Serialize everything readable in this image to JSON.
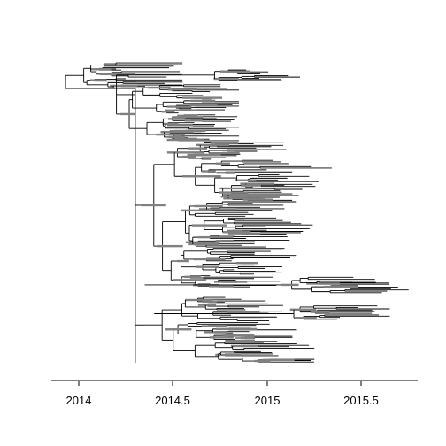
{
  "figure": {
    "type": "time-scaled phylogenetic tree",
    "leaves": "unlabeled",
    "line_color": "#000000",
    "uncertainty_bar_color": "#808080",
    "background": "#ffffff"
  },
  "chart_data": {
    "type": "tree",
    "xlabel": "",
    "ylabel": "",
    "xlim": [
      2013.85,
      2015.8
    ],
    "ticks": [
      {
        "value": 2014,
        "label": "2014"
      },
      {
        "value": 2014.5,
        "label": "2014.5"
      },
      {
        "value": 2015,
        "label": "2015"
      },
      {
        "value": 2015.5,
        "label": "2015.5"
      }
    ],
    "root_time": 2013.93,
    "latest_tip": 2015.75,
    "grid": false,
    "legend": "none"
  }
}
